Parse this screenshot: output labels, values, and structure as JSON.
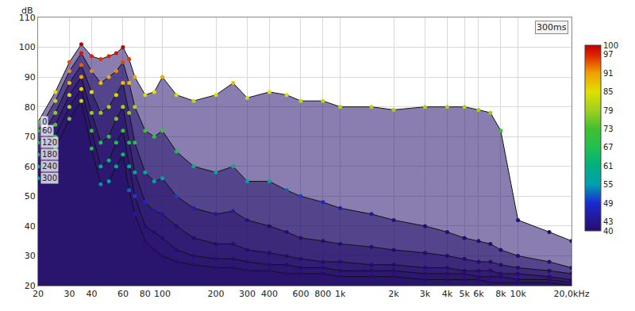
{
  "chart_data": {
    "type": "waterfall",
    "y_label": "dB",
    "time_span_label": "300ms",
    "x": [
      20,
      25,
      30,
      35,
      40,
      45,
      50,
      55,
      60,
      65,
      70,
      80,
      90,
      100,
      120,
      150,
      200,
      250,
      300,
      400,
      500,
      600,
      800,
      1000,
      1500,
      2000,
      3000,
      4000,
      5000,
      6000,
      7000,
      8000,
      10000,
      15000,
      20000
    ],
    "series": [
      {
        "name": "0",
        "values": [
          75,
          85,
          95,
          101,
          97,
          96,
          97,
          98,
          100,
          96,
          90,
          84,
          85,
          90,
          84,
          82,
          84,
          88,
          83,
          85,
          84,
          82,
          82,
          80,
          80,
          79,
          80,
          80,
          80,
          79,
          78,
          72,
          42,
          38,
          35
        ]
      },
      {
        "name": "60",
        "values": [
          72,
          82,
          92,
          98,
          92,
          88,
          90,
          92,
          95,
          88,
          80,
          72,
          70,
          72,
          65,
          60,
          58,
          60,
          55,
          55,
          52,
          50,
          48,
          46,
          44,
          42,
          40,
          38,
          36,
          35,
          34,
          32,
          30,
          28,
          26
        ]
      },
      {
        "name": "120",
        "values": [
          68,
          78,
          88,
          94,
          85,
          78,
          80,
          84,
          88,
          78,
          68,
          58,
          55,
          56,
          50,
          46,
          44,
          45,
          42,
          40,
          38,
          36,
          35,
          34,
          33,
          32,
          31,
          30,
          29,
          28,
          28,
          27,
          26,
          25,
          24
        ]
      },
      {
        "name": "180",
        "values": [
          64,
          74,
          84,
          90,
          78,
          68,
          70,
          76,
          80,
          68,
          58,
          48,
          45,
          44,
          40,
          36,
          34,
          34,
          32,
          31,
          30,
          29,
          28,
          28,
          27,
          27,
          26,
          26,
          25,
          25,
          25,
          24,
          24,
          23,
          22
        ]
      },
      {
        "name": "240",
        "values": [
          60,
          70,
          80,
          86,
          72,
          60,
          62,
          68,
          72,
          60,
          50,
          40,
          38,
          36,
          32,
          30,
          29,
          29,
          28,
          27,
          27,
          26,
          26,
          25,
          25,
          25,
          24,
          24,
          24,
          23,
          23,
          23,
          22,
          22,
          21
        ]
      },
      {
        "name": "300",
        "values": [
          56,
          66,
          76,
          82,
          66,
          54,
          55,
          60,
          64,
          52,
          44,
          35,
          32,
          30,
          28,
          27,
          26,
          26,
          25,
          25,
          24,
          24,
          24,
          23,
          23,
          23,
          22,
          22,
          22,
          22,
          21,
          21,
          21,
          21,
          20
        ]
      }
    ],
    "log": "x",
    "grid": true,
    "xlim": [
      20,
      20000
    ],
    "xticks": [
      20,
      30,
      40,
      60,
      80,
      100,
      200,
      300,
      400,
      600,
      800,
      {
        "value": 1000,
        "label": "1k"
      },
      {
        "value": 2000,
        "label": "2k"
      },
      {
        "value": 3000,
        "label": "3k"
      },
      {
        "value": 4000,
        "label": "4k"
      },
      {
        "value": 5000,
        "label": "5k"
      },
      {
        "value": 6000,
        "label": "6k"
      },
      {
        "value": 8000,
        "label": "8k"
      },
      {
        "value": 10000,
        "label": "10k"
      },
      {
        "value": 20000,
        "label": "20,0kHz"
      }
    ],
    "ylim": [
      20,
      110
    ],
    "yticks": [
      20,
      30,
      40,
      50,
      60,
      70,
      80,
      90,
      100,
      110
    ],
    "color_range": [
      40,
      100
    ],
    "color_ticks": [
      100,
      97,
      91,
      85,
      79,
      73,
      67,
      61,
      55,
      49,
      43,
      40
    ]
  }
}
